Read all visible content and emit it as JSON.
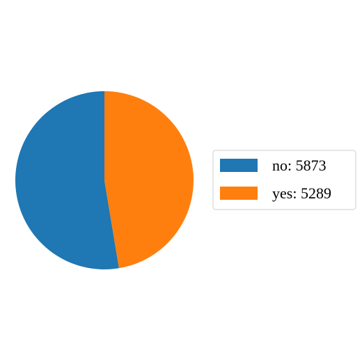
{
  "chart_data": {
    "type": "pie",
    "title": "",
    "labels": [
      "no",
      "yes"
    ],
    "values": [
      5873,
      5289
    ],
    "colors": [
      "#1f77b4",
      "#ff7f0e"
    ],
    "legend_entries": [
      "no: 5873",
      "yes: 5289"
    ],
    "legend_position": "right",
    "start_angle_deg": 90,
    "direction": "clockwise"
  }
}
